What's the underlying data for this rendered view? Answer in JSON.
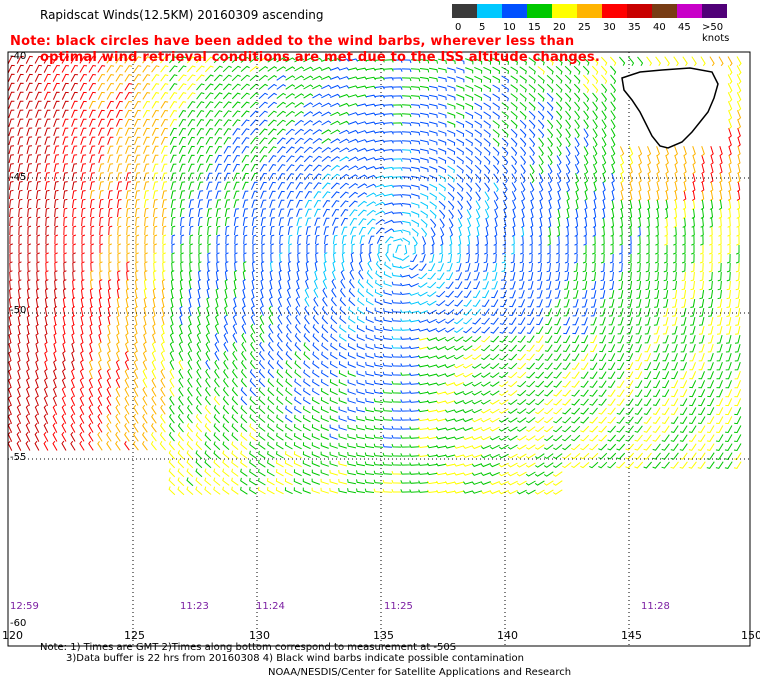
{
  "title": "Rapidscat Winds(12.5KM) 20160309 ascending",
  "note_line1": "Note: black circles have been added to the wind barbs, wherever less than",
  "note_line2": "optimal wind retrieval conditions are met due to the ISS altitude changes.",
  "legend": {
    "labels": [
      "0",
      "5",
      "10",
      "15",
      "20",
      "25",
      "30",
      "35",
      "40",
      "45",
      ">50 knots"
    ],
    "colors": [
      "#3a3a3a",
      "#00c8ff",
      "#0050ff",
      "#00c800",
      "#ffff00",
      "#ffb400",
      "#ff0000",
      "#c80000",
      "#783c14",
      "#c800c8",
      "#500078"
    ]
  },
  "axes": {
    "lon_labels": [
      "120",
      "125",
      "130",
      "135",
      "140",
      "145",
      "150"
    ],
    "lat_labels": [
      "-40",
      "-45",
      "-50",
      "-55",
      "-60"
    ]
  },
  "times": [
    "12:59",
    "11:23",
    "11:24",
    "11:25",
    "11:28"
  ],
  "footer": {
    "line1": "Note: 1) Times are GMT 2)Times along bottom correspond to measurement at -50S",
    "line2": "3)Data buffer is 22 hrs from 20160308 4) Black wind barbs indicate possible contamination",
    "line3": "NOAA/NESDIS/Center for Satellite Applications and Research"
  }
}
